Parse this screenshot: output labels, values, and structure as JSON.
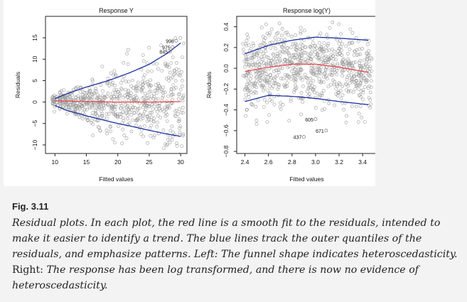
{
  "chart_data": [
    {
      "type": "scatter",
      "title": "Response Y",
      "xlabel": "Fitted values",
      "ylabel": "Residuals",
      "xlim": [
        8.5,
        31
      ],
      "ylim": [
        -12,
        20
      ],
      "xticks": [
        10,
        15,
        20,
        25,
        30
      ],
      "yticks": [
        -10,
        -5,
        0,
        5,
        10,
        15
      ],
      "xtick_labels": [
        "10",
        "15",
        "20",
        "25",
        "30"
      ],
      "ytick_labels": [
        "−10",
        "−5",
        "0",
        "5",
        "10",
        "15"
      ],
      "annotations": [
        {
          "text": "998",
          "x": 29.3,
          "y": 14.3
        },
        {
          "text": "975",
          "x": 28.7,
          "y": 12.8
        },
        {
          "text": "845",
          "x": 28.3,
          "y": 11.8
        }
      ],
      "series": [
        {
          "kind": "points",
          "count": 700,
          "x_range": [
            9.5,
            30.5
          ],
          "spread_start": 0.8,
          "spread_end": 6.5
        },
        {
          "kind": "smooth",
          "color": "#e8474e",
          "x": [
            10,
            15,
            20,
            25,
            30
          ],
          "y": [
            0.3,
            0.1,
            0,
            0,
            0.1
          ]
        },
        {
          "kind": "upper-quantile",
          "color": "#1b2fa0",
          "x": [
            10,
            12,
            15,
            18,
            20,
            22,
            25,
            28,
            30
          ],
          "y": [
            0.8,
            2,
            3.5,
            4.8,
            5.8,
            6.9,
            8.8,
            11.5,
            13.8
          ]
        },
        {
          "kind": "lower-quantile",
          "color": "#1b2fa0",
          "x": [
            10,
            12,
            15,
            18,
            20,
            22,
            25,
            28,
            30
          ],
          "y": [
            -0.8,
            -2,
            -3.2,
            -4.3,
            -5,
            -5.6,
            -6.6,
            -7.5,
            -8
          ]
        }
      ]
    },
    {
      "type": "scatter",
      "title": "Response log(Y)",
      "xlabel": "Fitted values",
      "ylabel": "Residuals",
      "xlim": [
        2.33,
        3.52
      ],
      "ylim": [
        -0.82,
        0.5
      ],
      "xticks": [
        2.4,
        2.6,
        2.8,
        3.0,
        3.2,
        3.4
      ],
      "yticks": [
        -0.8,
        -0.6,
        -0.4,
        -0.2,
        0.0,
        0.2,
        0.4
      ],
      "xtick_labels": [
        "2.4",
        "2.6",
        "2.8",
        "3.0",
        "3.2",
        "3.4"
      ],
      "ytick_labels": [
        "−0.8",
        "−0.6",
        "−0.4",
        "−0.2",
        "0.0",
        "0.2",
        "0.4"
      ],
      "annotations": [
        {
          "text": "605",
          "x": 3.0,
          "y": -0.49
        },
        {
          "text": "671",
          "x": 3.09,
          "y": -0.6
        },
        {
          "text": "437",
          "x": 2.9,
          "y": -0.66
        }
      ],
      "series": [
        {
          "kind": "points",
          "count": 800,
          "x_range": [
            2.38,
            3.48
          ],
          "spread_start": 0.19,
          "spread_end": 0.19
        },
        {
          "kind": "smooth",
          "color": "#e8474e",
          "x": [
            2.4,
            2.6,
            2.8,
            3.0,
            3.2,
            3.4,
            3.45
          ],
          "y": [
            -0.03,
            0.01,
            0.04,
            0.04,
            0.01,
            -0.03,
            -0.04
          ]
        },
        {
          "kind": "upper-quantile",
          "color": "#1b2fa0",
          "x": [
            2.4,
            2.6,
            2.8,
            3.0,
            3.2,
            3.45
          ],
          "y": [
            0.14,
            0.22,
            0.27,
            0.3,
            0.29,
            0.27
          ]
        },
        {
          "kind": "lower-quantile",
          "color": "#1b2fa0",
          "x": [
            2.4,
            2.6,
            2.8,
            3.0,
            3.2,
            3.45
          ],
          "y": [
            -0.32,
            -0.26,
            -0.27,
            -0.29,
            -0.32,
            -0.35
          ]
        }
      ]
    }
  ],
  "caption": {
    "label": "Fig. 3.11",
    "segments": [
      {
        "style": "it",
        "text": "Residual plots. In each plot, the red line is a smooth fit to the residuals, intended to make it easier to identify a trend. The blue lines track the outer quantiles of the residuals, and emphasize patterns. Left: The funnel shape indicates heteroscedasticity. "
      },
      {
        "style": "rm",
        "text": "Right: "
      },
      {
        "style": "it",
        "text": "The response has been log transformed, and there is now no evidence of heteroscedasticity."
      }
    ]
  }
}
